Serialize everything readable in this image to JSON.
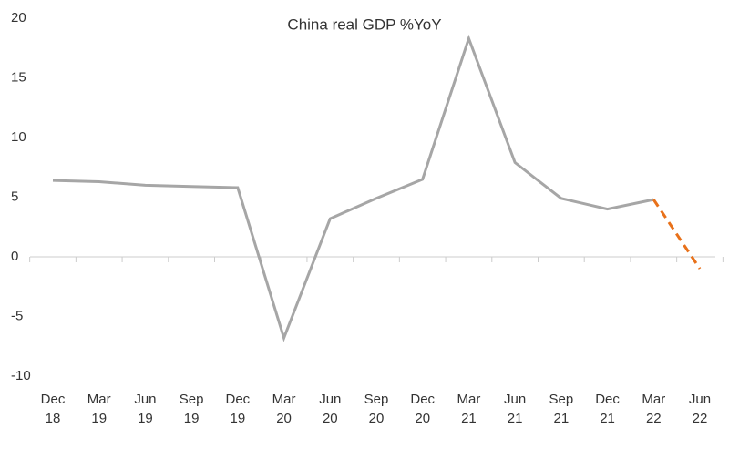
{
  "chart_data": {
    "type": "line",
    "title": "China real GDP %YoY",
    "categories": [
      "Dec 18",
      "Mar 19",
      "Jun 19",
      "Sep 19",
      "Dec 19",
      "Mar 20",
      "Jun 20",
      "Sep 20",
      "Dec 20",
      "Mar 21",
      "Jun 21",
      "Sep 21",
      "Dec 21",
      "Mar 22",
      "Jun 22"
    ],
    "series": [
      {
        "color": "#a6a6a6",
        "dashed": false,
        "values": [
          6.4,
          6.3,
          6.0,
          5.9,
          5.8,
          -6.8,
          3.2,
          4.9,
          6.5,
          18.3,
          7.9,
          4.9,
          4.0,
          4.8,
          null
        ]
      },
      {
        "color": "#e8711a",
        "dashed": true,
        "values": [
          null,
          null,
          null,
          null,
          null,
          null,
          null,
          null,
          null,
          null,
          null,
          null,
          null,
          4.8,
          -1.0
        ]
      }
    ],
    "ylim": [
      -10,
      20
    ],
    "yticks": [
      -10,
      -5,
      0,
      5,
      10,
      15,
      20
    ],
    "grid": false
  }
}
